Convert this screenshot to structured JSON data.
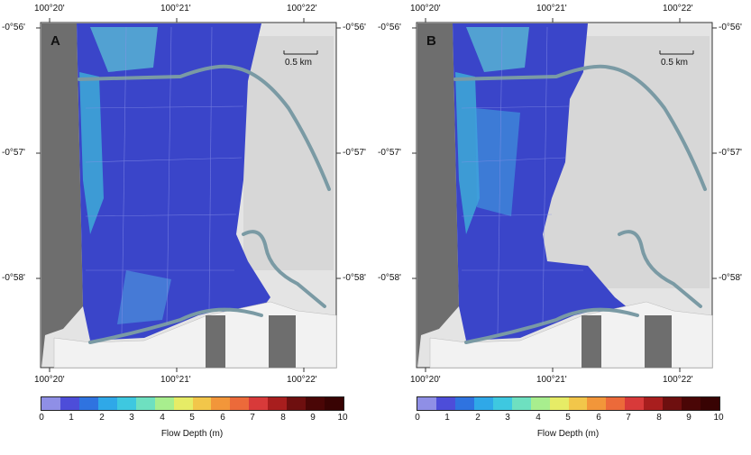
{
  "panels": [
    {
      "label": "A",
      "lon_labels": [
        "100°20'",
        "100°21'",
        "100°22'"
      ],
      "lat_labels": [
        "-0°56'",
        "-0°57'",
        "-0°58'"
      ],
      "scale_label": "0.5 km"
    },
    {
      "label": "B",
      "lon_labels": [
        "100°20'",
        "100°21'",
        "100°22'"
      ],
      "lat_labels": [
        "-0°56'",
        "-0°57'",
        "-0°58'"
      ],
      "scale_label": "0.5 km"
    }
  ],
  "colorbar": {
    "title": "Flow Depth (m)",
    "ticks": [
      "0",
      "1",
      "2",
      "3",
      "4",
      "5",
      "6",
      "7",
      "8",
      "9",
      "10"
    ],
    "colors": [
      "#8f8fe6",
      "#4d4dd9",
      "#2f73e0",
      "#2fa8e8",
      "#3ec8e0",
      "#6ee0c0",
      "#a8ee8e",
      "#e6ec66",
      "#f2c64a",
      "#f2963a",
      "#ec6a3a",
      "#d83a3a",
      "#a81e1e",
      "#6e0f0f",
      "#4a0606",
      "#380303"
    ]
  },
  "colors": {
    "ocean": "#6e6e6e",
    "land_relief": "#e6e6e6",
    "flood_deep_blue": "#3a45c9",
    "river": "#7a9aa4"
  }
}
